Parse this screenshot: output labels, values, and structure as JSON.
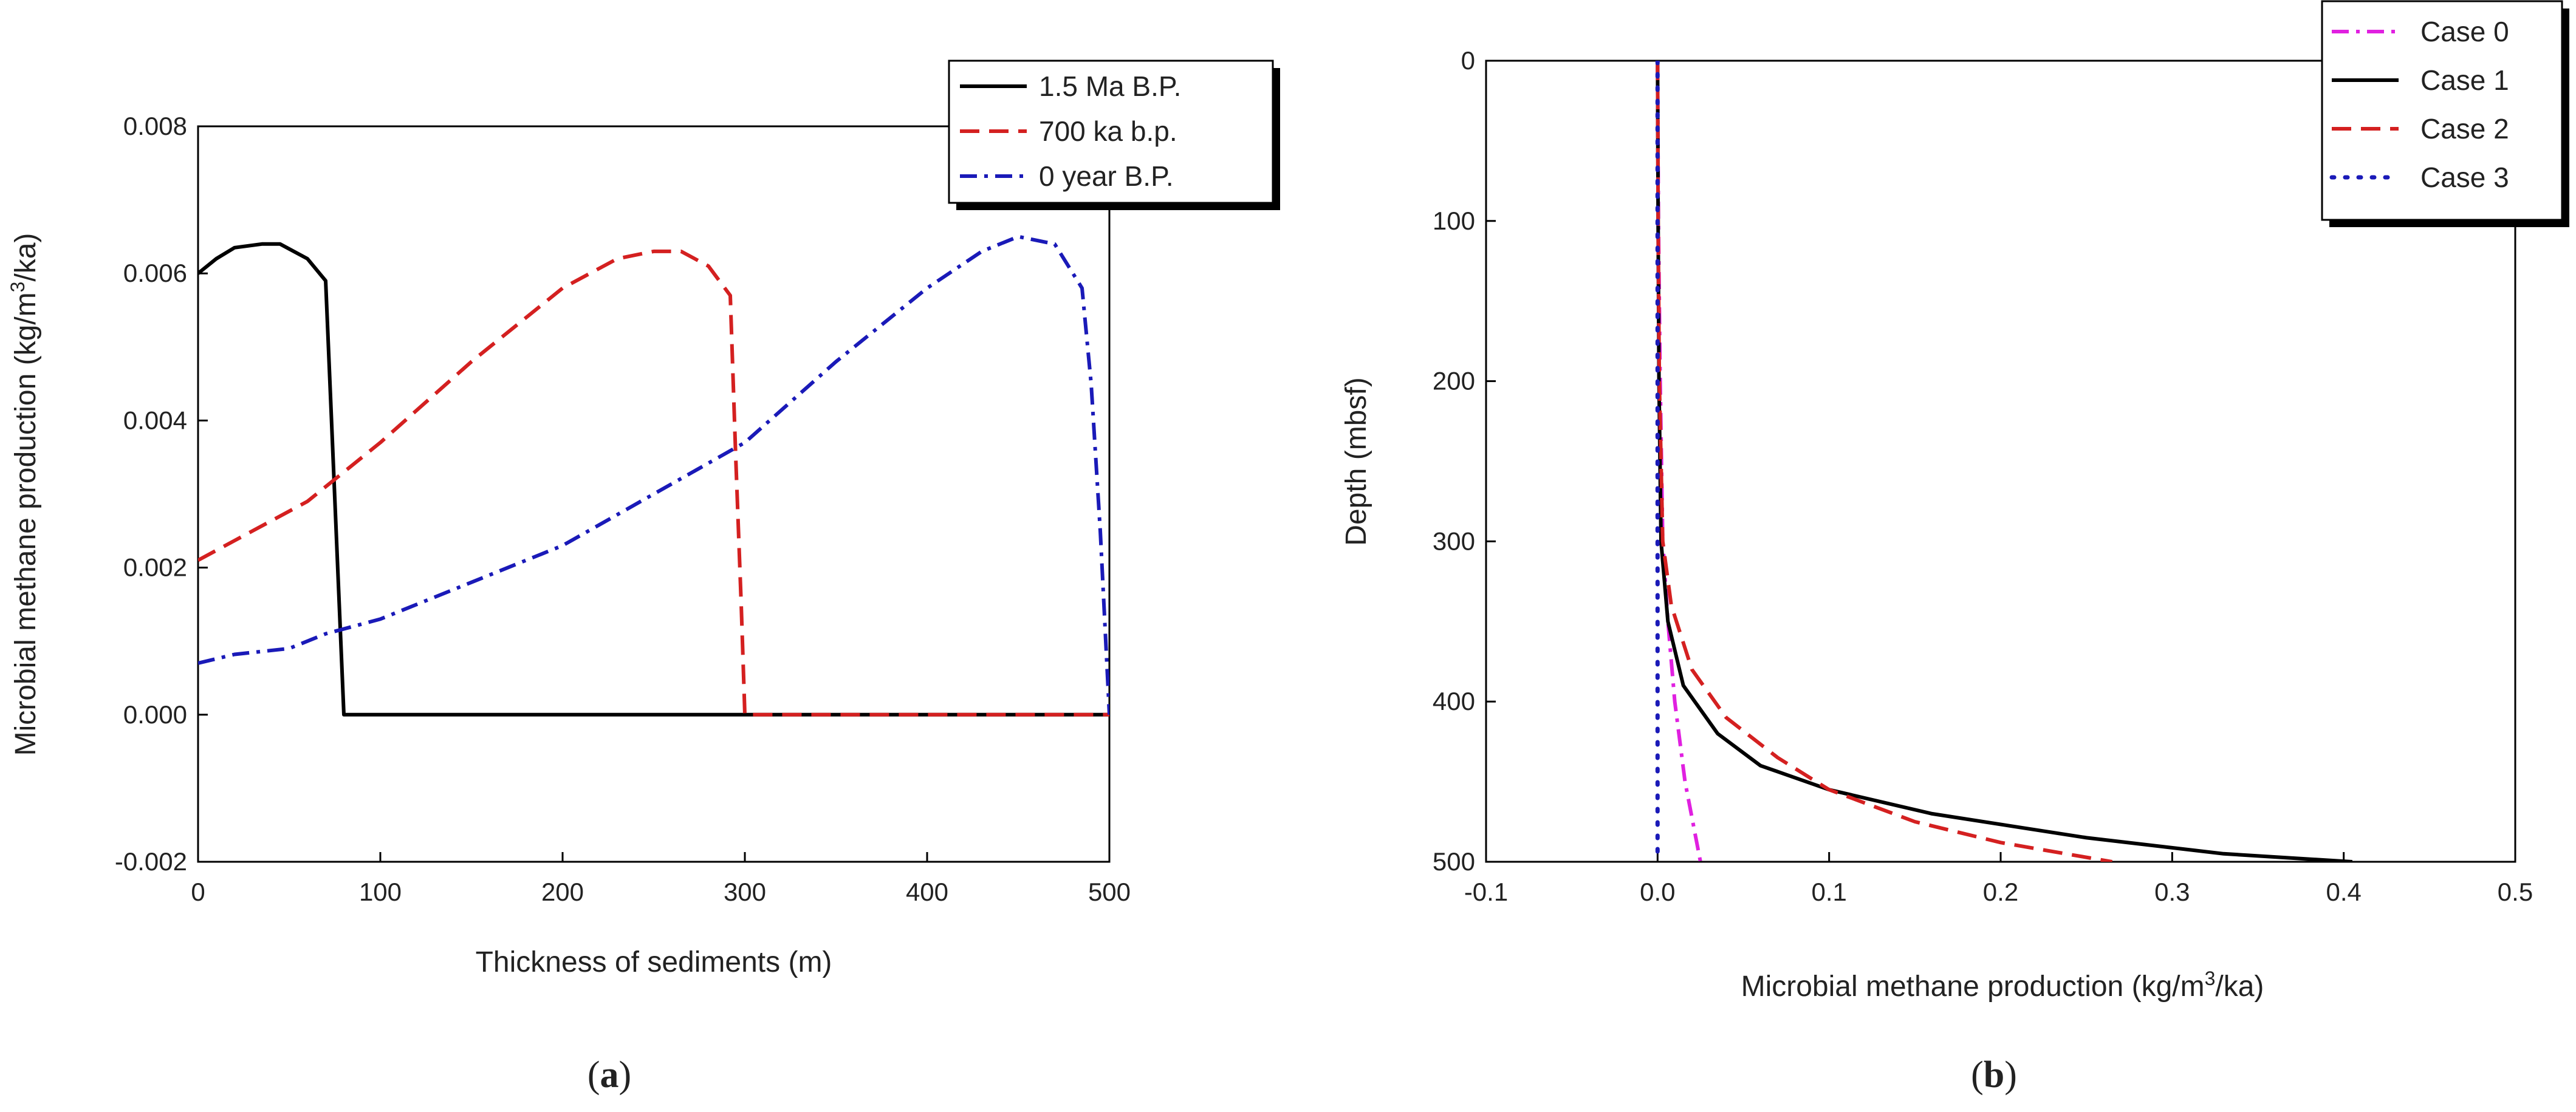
{
  "chart_data": [
    {
      "panel": "a",
      "type": "line",
      "xlabel": "Thickness of sediments (m)",
      "ylabel": "Microbial methane production (kg/m³/ka)",
      "xlim": [
        0,
        500
      ],
      "ylim": [
        -0.002,
        0.008
      ],
      "xticks": [
        0,
        100,
        200,
        300,
        400,
        500
      ],
      "xtick_labels": [
        "0",
        "100",
        "200",
        "300",
        "400",
        "500"
      ],
      "yticks": [
        -0.002,
        0.0,
        0.002,
        0.004,
        0.006,
        0.008
      ],
      "ytick_labels": [
        "-0.002",
        "0.000",
        "0.002",
        "0.004",
        "0.006",
        "0.008"
      ],
      "legend_position": "top-right",
      "series": [
        {
          "name": "1.5 Ma B.P.",
          "color": "#000000",
          "dash": "solid",
          "x": [
            0,
            10,
            20,
            35,
            45,
            60,
            70,
            80,
            100,
            200,
            300,
            400,
            500
          ],
          "y": [
            0.006,
            0.0062,
            0.00635,
            0.0064,
            0.0064,
            0.0062,
            0.0059,
            0.0,
            0.0,
            0.0,
            0.0,
            0.0,
            0.0
          ]
        },
        {
          "name": "700 ka b.p.",
          "color": "#d42020",
          "dash": "dash",
          "x": [
            0,
            30,
            60,
            80,
            100,
            150,
            200,
            230,
            250,
            265,
            280,
            292,
            295,
            298,
            300,
            400,
            500
          ],
          "y": [
            0.0021,
            0.0025,
            0.0029,
            0.0033,
            0.0037,
            0.0048,
            0.0058,
            0.0062,
            0.0063,
            0.0063,
            0.0061,
            0.0057,
            0.0035,
            0.0015,
            0.0,
            0.0,
            0.0
          ]
        },
        {
          "name": "0 year B.P.",
          "color": "#1a1ab8",
          "dash": "dashdot",
          "x": [
            0,
            20,
            50,
            70,
            100,
            150,
            200,
            250,
            300,
            350,
            400,
            430,
            450,
            470,
            485,
            490,
            495,
            500
          ],
          "y": [
            0.0007,
            0.00082,
            0.0009,
            0.0011,
            0.0013,
            0.0018,
            0.0023,
            0.003,
            0.0037,
            0.0048,
            0.0058,
            0.0063,
            0.0065,
            0.0064,
            0.0058,
            0.0045,
            0.0025,
            0.0
          ]
        }
      ]
    },
    {
      "panel": "b",
      "type": "line",
      "xlabel": "Microbial methane production (kg/m³/ka)",
      "ylabel": "Depth (mbsf)",
      "xlim": [
        -0.1,
        0.5
      ],
      "ylim": [
        0,
        500
      ],
      "y_inverted": true,
      "xticks": [
        -0.1,
        0.0,
        0.1,
        0.2,
        0.3,
        0.4,
        0.5
      ],
      "xtick_labels": [
        "-0.1",
        "0.0",
        "0.1",
        "0.2",
        "0.3",
        "0.4",
        "0.5"
      ],
      "yticks": [
        0,
        100,
        200,
        300,
        400,
        500
      ],
      "ytick_labels": [
        "0",
        "100",
        "200",
        "300",
        "400",
        "500"
      ],
      "legend_position": "top-right",
      "series": [
        {
          "name": "Case 0",
          "color": "#e020e0",
          "dash": "dashdot",
          "x": [
            0.0,
            0.0005,
            0.0015,
            0.003,
            0.006,
            0.01,
            0.016,
            0.025
          ],
          "y": [
            0,
            100,
            200,
            300,
            350,
            400,
            450,
            500
          ]
        },
        {
          "name": "Case 1",
          "color": "#000000",
          "dash": "solid",
          "x": [
            0.0,
            0.0003,
            0.0008,
            0.002,
            0.006,
            0.015,
            0.035,
            0.06,
            0.1,
            0.16,
            0.25,
            0.33,
            0.405
          ],
          "y": [
            0,
            100,
            200,
            300,
            350,
            390,
            420,
            440,
            455,
            470,
            485,
            495,
            500
          ]
        },
        {
          "name": "Case 2",
          "color": "#d42020",
          "dash": "dash",
          "x": [
            0.0,
            0.0003,
            0.001,
            0.003,
            0.008,
            0.02,
            0.04,
            0.07,
            0.1,
            0.15,
            0.2,
            0.265
          ],
          "y": [
            0,
            100,
            200,
            300,
            340,
            380,
            410,
            435,
            455,
            475,
            488,
            500
          ]
        },
        {
          "name": "Case 3",
          "color": "#1a1ab8",
          "dash": "dot",
          "x": [
            0.0,
            0.0,
            0.0,
            0.0,
            0.0,
            0.0
          ],
          "y": [
            0,
            100,
            200,
            300,
            400,
            500
          ]
        }
      ]
    }
  ],
  "panel_labels": {
    "a": "a",
    "b": "b"
  }
}
